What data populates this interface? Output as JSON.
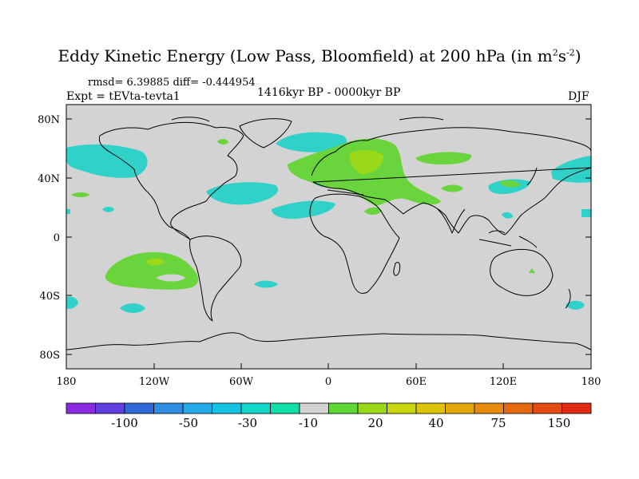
{
  "title": {
    "main": "Eddy Kinetic Energy (Low Pass, Bloomfield) at 200 hPa (in m",
    "unit_sup1": "2",
    "unit_s": "s",
    "unit_sup2": "-2",
    "close": ")"
  },
  "stats": "rmsd= 6.39885 diff= -0.444954",
  "expt": "Expt = tEVta-tevta1",
  "period": "1416kyr BP - 0000kyr BP",
  "season": "DJF",
  "map": {
    "lat_labels": [
      "80N",
      "40N",
      "0",
      "40S",
      "80S"
    ],
    "lon_labels": [
      "180",
      "120W",
      "60W",
      "0",
      "60E",
      "120E",
      "180"
    ],
    "ocean_color": "#d3d3d3"
  },
  "colorbar": {
    "colors": [
      "#8a2be2",
      "#5f3fe0",
      "#2f6ad8",
      "#2f8ee0",
      "#23a9e6",
      "#16c3e2",
      "#12d6c8",
      "#10e0a8",
      "#d3d3d3",
      "#5fd838",
      "#9ad81a",
      "#c9d60e",
      "#dcc409",
      "#e2a80a",
      "#e68b0d",
      "#e66a10",
      "#e44a12",
      "#e02a14"
    ],
    "tick_labels": [
      "-100",
      "-50",
      "-30",
      "-10",
      "20",
      "40",
      "75",
      "150"
    ]
  }
}
